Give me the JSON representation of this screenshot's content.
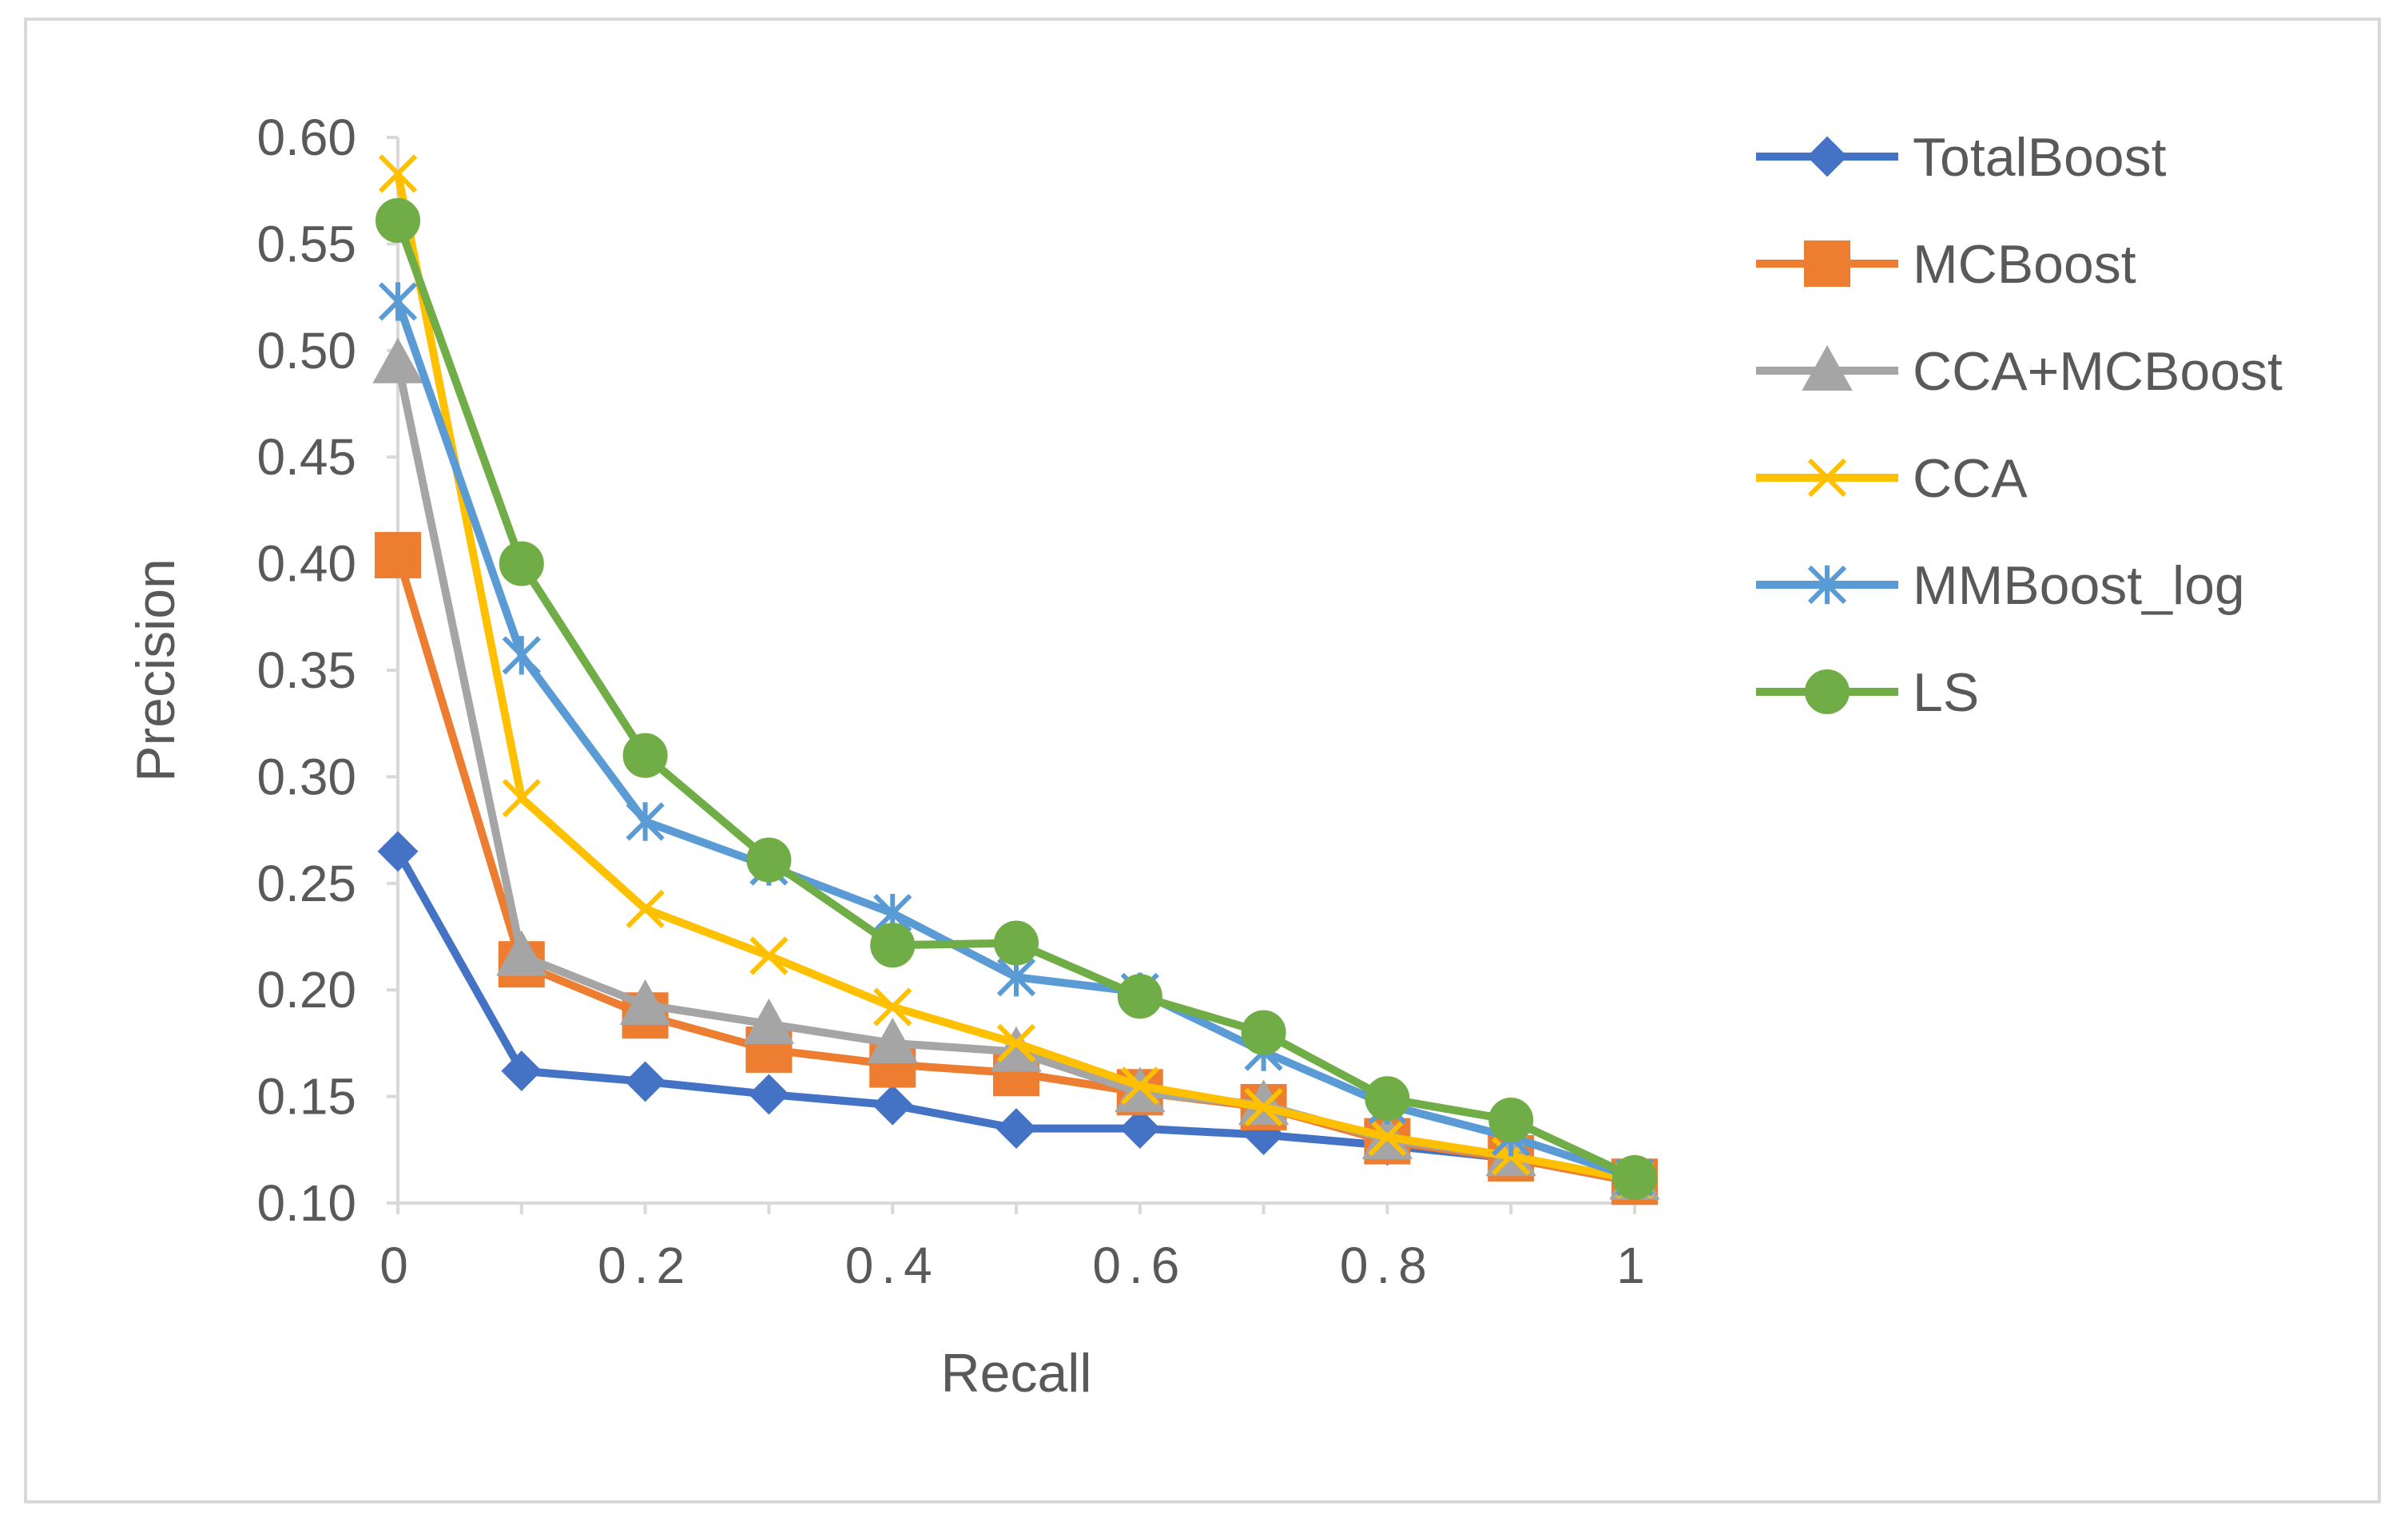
{
  "chart_data": {
    "type": "line",
    "title": "",
    "xlabel": "Recall",
    "ylabel": "Precision",
    "x": [
      0,
      0.1,
      0.2,
      0.3,
      0.4,
      0.5,
      0.6,
      0.7,
      0.8,
      0.9,
      1
    ],
    "xlim": [
      0,
      1
    ],
    "ylim": [
      0.1,
      0.6
    ],
    "x_ticks": [
      0,
      0.2,
      0.4,
      0.6,
      0.8,
      1
    ],
    "x_tick_labels": [
      "0",
      "0.2",
      "0.4",
      "0.6",
      "0.8",
      "1"
    ],
    "y_ticks": [
      0.1,
      0.15,
      0.2,
      0.25,
      0.3,
      0.35,
      0.4,
      0.45,
      0.5,
      0.55,
      0.6
    ],
    "y_tick_labels": [
      "0.10",
      "0.15",
      "0.20",
      "0.25",
      "0.30",
      "0.35",
      "0.40",
      "0.45",
      "0.50",
      "0.55",
      "0.60"
    ],
    "grid": false,
    "legend_position": "right",
    "series": [
      {
        "name": "TotalBoost",
        "color": "#4472c4",
        "marker": "diamond",
        "values": [
          0.265,
          0.162,
          0.157,
          0.151,
          0.146,
          0.135,
          0.135,
          0.132,
          0.127,
          0.121,
          0.11
        ]
      },
      {
        "name": "MCBoost",
        "color": "#ed7d31",
        "marker": "square",
        "values": [
          0.404,
          0.212,
          0.188,
          0.172,
          0.165,
          0.161,
          0.152,
          0.145,
          0.129,
          0.121,
          0.11
        ]
      },
      {
        "name": "CCA+MCBoost",
        "color": "#a5a5a5",
        "marker": "triangle",
        "values": [
          0.494,
          0.216,
          0.193,
          0.184,
          0.175,
          0.171,
          0.152,
          0.146,
          0.13,
          0.122,
          0.111
        ]
      },
      {
        "name": "CCA",
        "color": "#ffc000",
        "marker": "x",
        "values": [
          0.583,
          0.29,
          0.238,
          0.216,
          0.192,
          0.175,
          0.155,
          0.145,
          0.131,
          0.122,
          0.111
        ]
      },
      {
        "name": "MMBoost_log",
        "color": "#5b9bd5",
        "marker": "asterisk",
        "values": [
          0.523,
          0.357,
          0.279,
          0.258,
          0.236,
          0.206,
          0.199,
          0.171,
          0.146,
          0.131,
          0.112
        ]
      },
      {
        "name": "LS",
        "color": "#70ad47",
        "marker": "circle",
        "values": [
          0.561,
          0.4,
          0.31,
          0.261,
          0.221,
          0.222,
          0.197,
          0.18,
          0.149,
          0.139,
          0.112
        ]
      }
    ]
  }
}
